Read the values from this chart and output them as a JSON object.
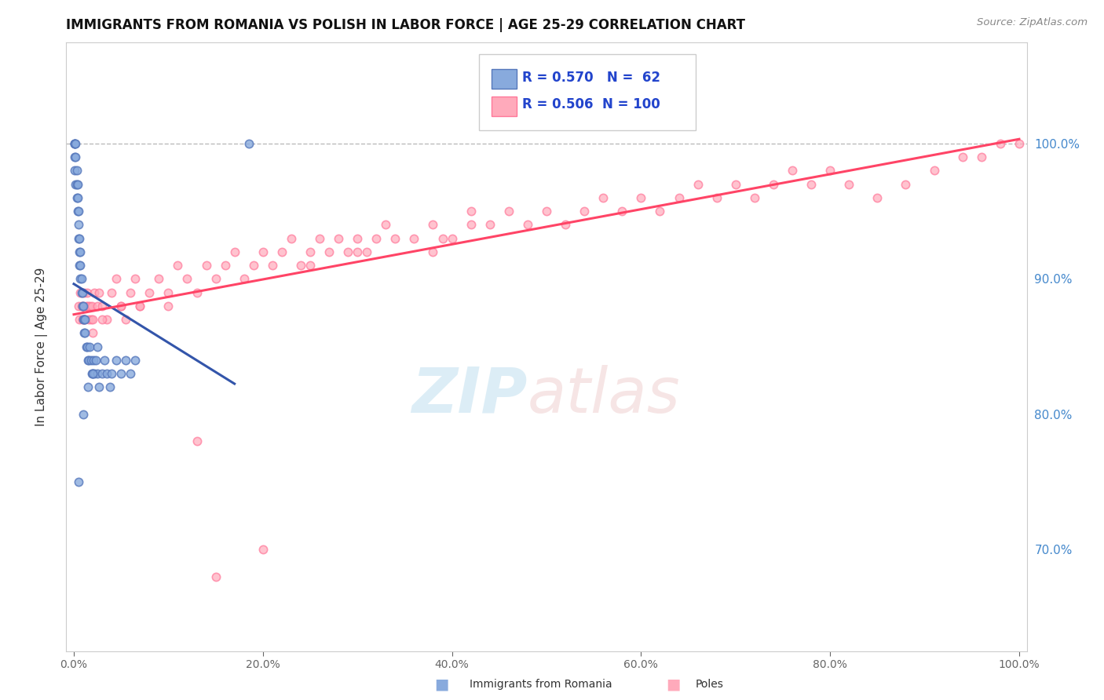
{
  "title": "IMMIGRANTS FROM ROMANIA VS POLISH IN LABOR FORCE | AGE 25-29 CORRELATION CHART",
  "source": "Source: ZipAtlas.com",
  "ylabel": "In Labor Force | Age 25-29",
  "blue_color": "#88AADD",
  "blue_edge_color": "#5577BB",
  "pink_color": "#FFAABB",
  "pink_edge_color": "#FF7799",
  "blue_line_color": "#3355AA",
  "pink_line_color": "#FF4466",
  "legend_R_blue": "0.570",
  "legend_N_blue": "62",
  "legend_R_pink": "0.506",
  "legend_N_pink": "100",
  "blue_x": [
    0.001,
    0.001,
    0.001,
    0.001,
    0.001,
    0.002,
    0.002,
    0.002,
    0.003,
    0.003,
    0.003,
    0.004,
    0.004,
    0.004,
    0.005,
    0.005,
    0.005,
    0.006,
    0.006,
    0.006,
    0.007,
    0.007,
    0.007,
    0.008,
    0.008,
    0.009,
    0.009,
    0.01,
    0.01,
    0.011,
    0.011,
    0.012,
    0.012,
    0.013,
    0.014,
    0.015,
    0.016,
    0.017,
    0.018,
    0.019,
    0.02,
    0.021,
    0.022,
    0.023,
    0.025,
    0.027,
    0.03,
    0.032,
    0.035,
    0.038,
    0.04,
    0.045,
    0.05,
    0.055,
    0.06,
    0.065,
    0.005,
    0.01,
    0.015,
    0.02,
    0.025,
    0.185
  ],
  "blue_y": [
    1.0,
    1.0,
    1.0,
    0.99,
    0.98,
    1.0,
    0.99,
    0.97,
    0.98,
    0.97,
    0.96,
    0.96,
    0.97,
    0.95,
    0.94,
    0.95,
    0.93,
    0.92,
    0.93,
    0.91,
    0.91,
    0.92,
    0.9,
    0.89,
    0.9,
    0.88,
    0.89,
    0.88,
    0.87,
    0.87,
    0.86,
    0.86,
    0.87,
    0.85,
    0.85,
    0.84,
    0.84,
    0.85,
    0.84,
    0.83,
    0.83,
    0.84,
    0.83,
    0.84,
    0.83,
    0.82,
    0.83,
    0.84,
    0.83,
    0.82,
    0.83,
    0.84,
    0.83,
    0.84,
    0.83,
    0.84,
    0.75,
    0.8,
    0.82,
    0.83,
    0.85,
    1.0
  ],
  "pink_x": [
    0.005,
    0.006,
    0.007,
    0.008,
    0.009,
    0.01,
    0.011,
    0.012,
    0.013,
    0.014,
    0.015,
    0.016,
    0.017,
    0.018,
    0.019,
    0.02,
    0.022,
    0.025,
    0.027,
    0.03,
    0.035,
    0.04,
    0.045,
    0.05,
    0.055,
    0.06,
    0.065,
    0.07,
    0.08,
    0.09,
    0.1,
    0.11,
    0.12,
    0.13,
    0.14,
    0.15,
    0.16,
    0.17,
    0.18,
    0.19,
    0.2,
    0.21,
    0.22,
    0.23,
    0.24,
    0.25,
    0.26,
    0.27,
    0.28,
    0.29,
    0.3,
    0.31,
    0.32,
    0.33,
    0.34,
    0.36,
    0.38,
    0.4,
    0.42,
    0.44,
    0.46,
    0.48,
    0.5,
    0.52,
    0.54,
    0.56,
    0.58,
    0.6,
    0.62,
    0.64,
    0.66,
    0.68,
    0.7,
    0.72,
    0.74,
    0.76,
    0.78,
    0.8,
    0.82,
    0.85,
    0.88,
    0.91,
    0.94,
    0.96,
    0.98,
    1.0,
    0.01,
    0.02,
    0.03,
    0.05,
    0.07,
    0.1,
    0.15,
    0.2,
    0.25,
    0.3,
    0.13,
    0.38,
    0.39,
    0.42
  ],
  "pink_y": [
    0.88,
    0.87,
    0.89,
    0.88,
    0.87,
    0.88,
    0.89,
    0.87,
    0.88,
    0.89,
    0.88,
    0.87,
    0.88,
    0.87,
    0.88,
    0.87,
    0.89,
    0.88,
    0.89,
    0.88,
    0.87,
    0.89,
    0.9,
    0.88,
    0.87,
    0.89,
    0.9,
    0.88,
    0.89,
    0.9,
    0.89,
    0.91,
    0.9,
    0.89,
    0.91,
    0.9,
    0.91,
    0.92,
    0.9,
    0.91,
    0.92,
    0.91,
    0.92,
    0.93,
    0.91,
    0.92,
    0.93,
    0.92,
    0.93,
    0.92,
    0.93,
    0.92,
    0.93,
    0.94,
    0.93,
    0.93,
    0.94,
    0.93,
    0.95,
    0.94,
    0.95,
    0.94,
    0.95,
    0.94,
    0.95,
    0.96,
    0.95,
    0.96,
    0.95,
    0.96,
    0.97,
    0.96,
    0.97,
    0.96,
    0.97,
    0.98,
    0.97,
    0.98,
    0.97,
    0.96,
    0.97,
    0.98,
    0.99,
    0.99,
    1.0,
    1.0,
    0.87,
    0.86,
    0.87,
    0.88,
    0.88,
    0.88,
    0.68,
    0.7,
    0.91,
    0.92,
    0.78,
    0.92,
    0.93,
    0.94
  ]
}
